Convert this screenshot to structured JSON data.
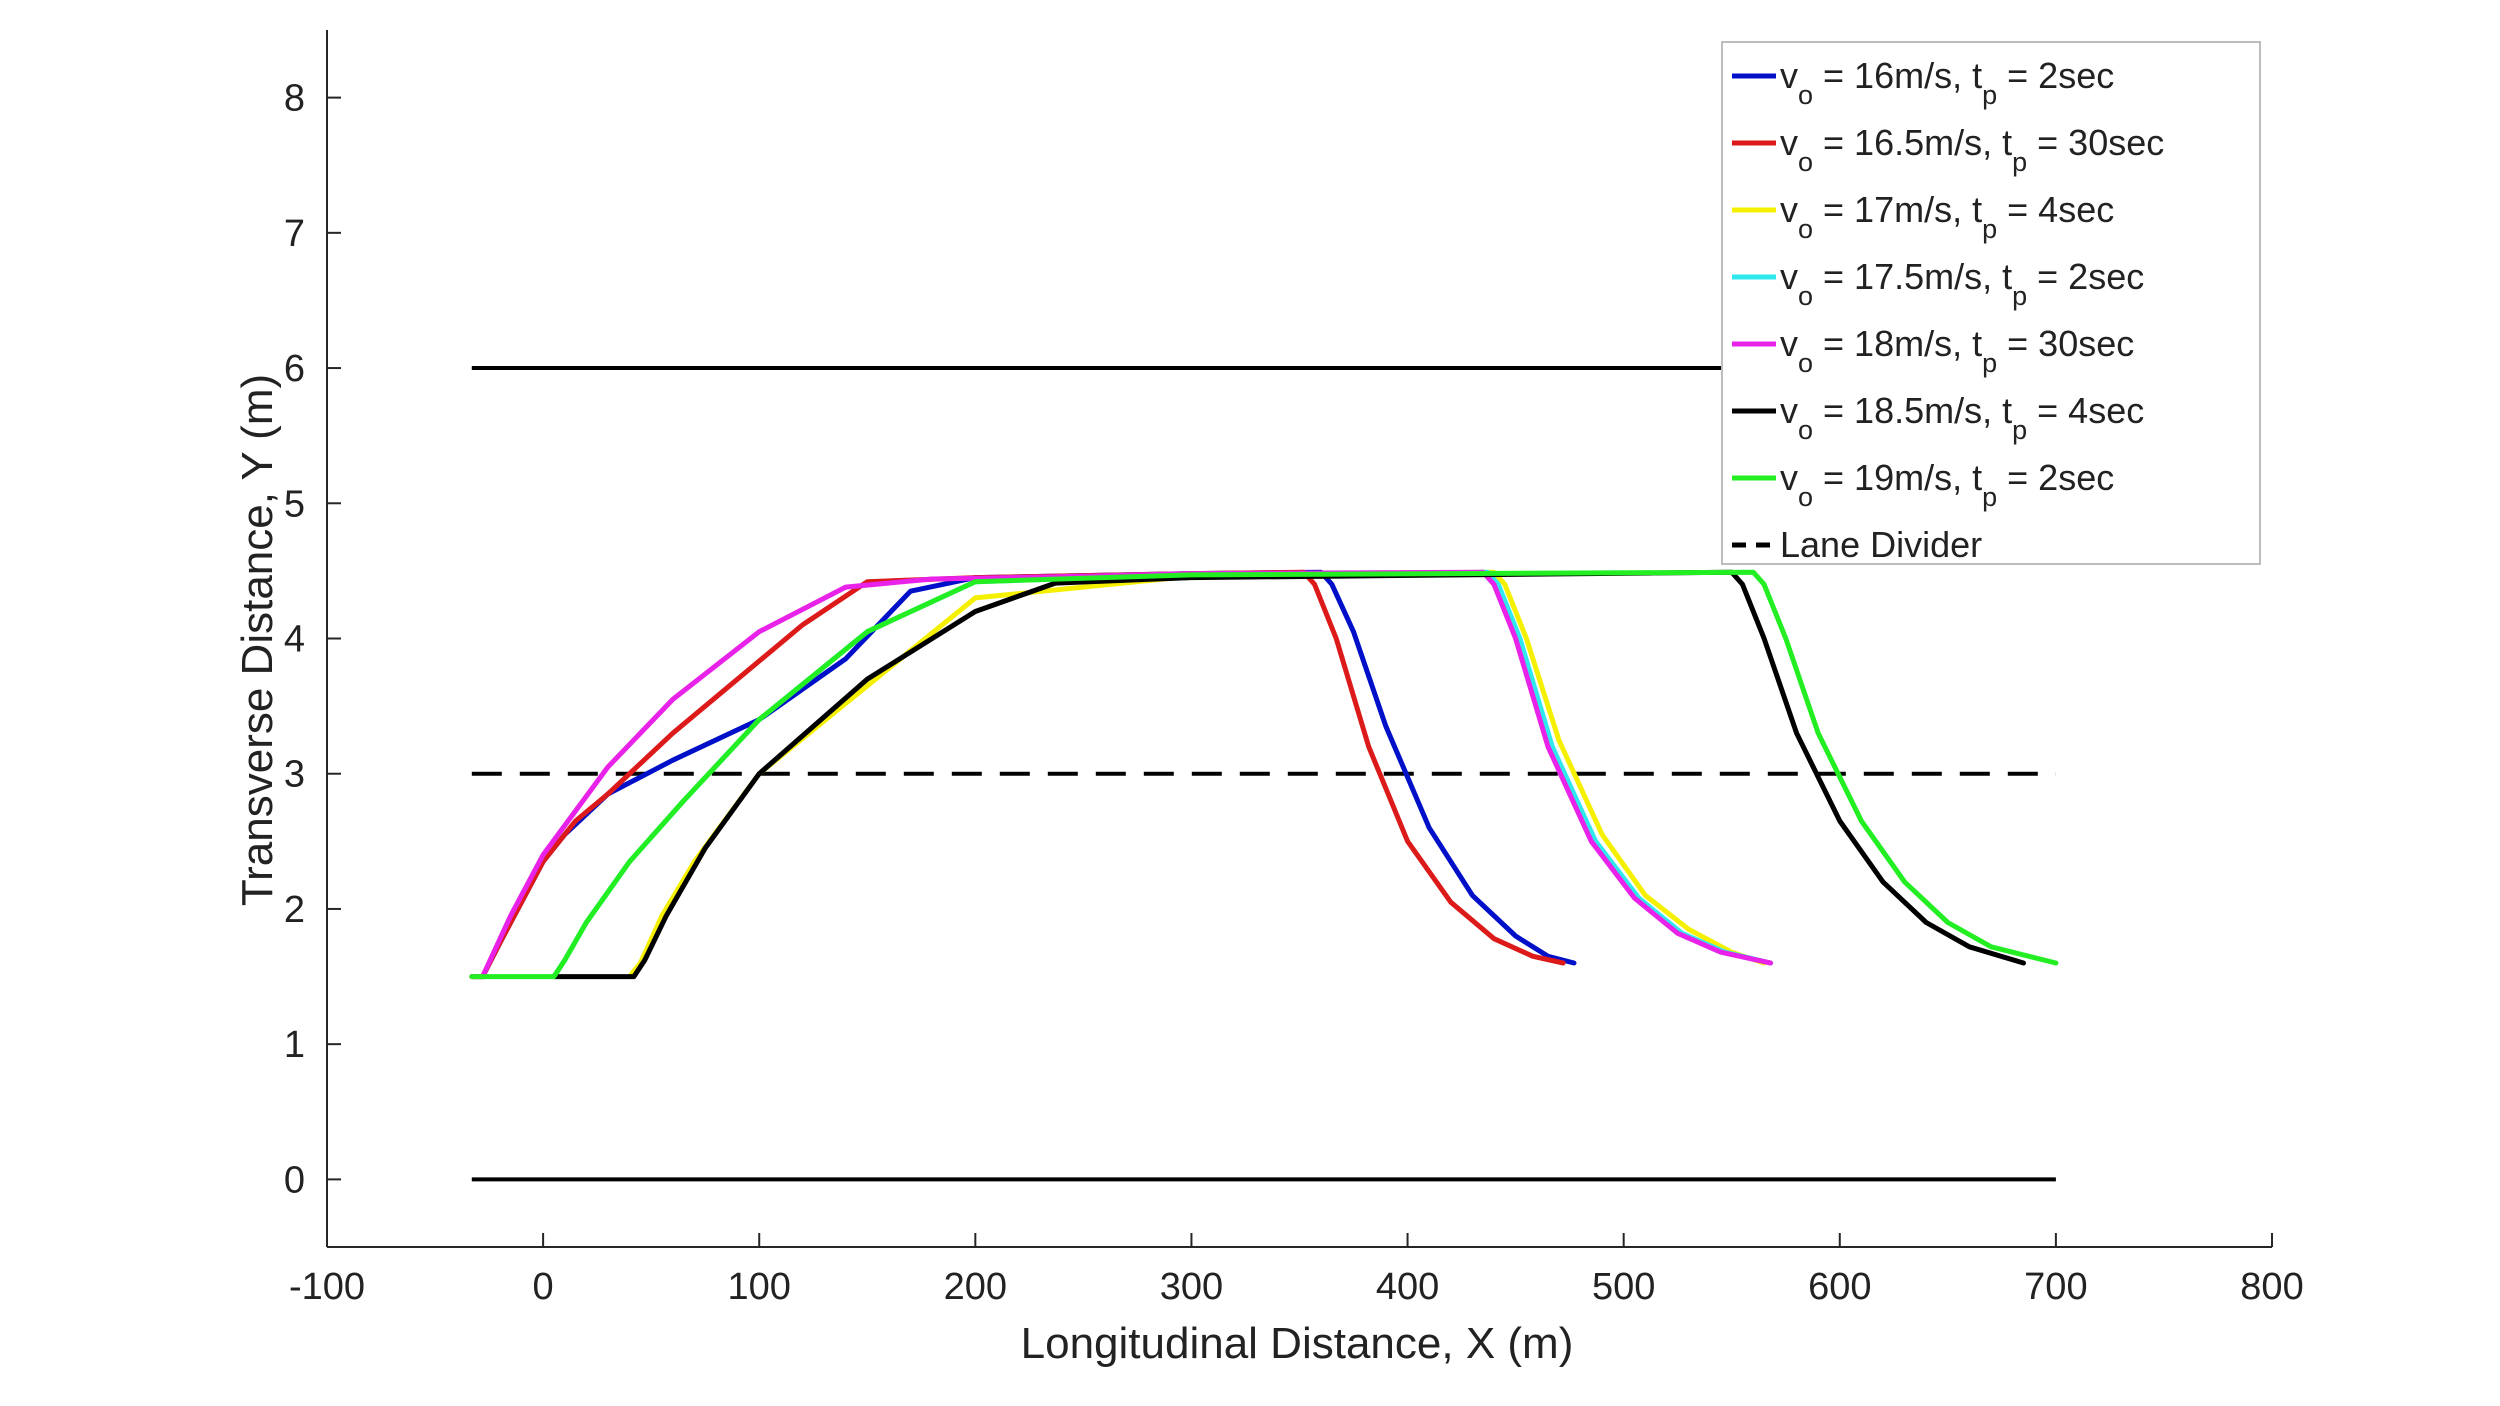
{
  "chart_data": {
    "type": "line",
    "title": "",
    "xlabel": "Longitudinal Distance, X (m)",
    "ylabel": "Transverse Distance, Y (m)",
    "xlim": [
      -100,
      800
    ],
    "ylim": [
      -0.5,
      8.5
    ],
    "xticks": [
      -100,
      0,
      100,
      200,
      300,
      400,
      500,
      600,
      700,
      800
    ],
    "yticks": [
      0,
      1,
      2,
      3,
      4,
      5,
      6,
      7,
      8
    ],
    "grid": false,
    "legend_position": "top-right",
    "series": [
      {
        "name": "v_o = 16m/s, t_p = 2sec",
        "v": "16m/s",
        "t": "2sec",
        "color": "#0010c8",
        "x": [
          -28,
          -20,
          -10,
          0,
          10,
          30,
          60,
          100,
          140,
          170,
          200,
          300,
          360,
          365,
          375,
          390,
          410,
          430,
          450,
          465,
          477
        ],
        "y": [
          1.5,
          1.75,
          2.05,
          2.35,
          2.55,
          2.85,
          3.1,
          3.4,
          3.85,
          4.35,
          4.45,
          4.48,
          4.49,
          4.4,
          4.05,
          3.35,
          2.6,
          2.1,
          1.8,
          1.65,
          1.6
        ]
      },
      {
        "name": "v_o = 16.5m/s, t_p = 30sec",
        "v": "16.5m/s",
        "t": "30sec",
        "color": "#dd1a1a",
        "x": [
          -33,
          -28,
          -20,
          -10,
          0,
          15,
          30,
          60,
          90,
          120,
          150,
          200,
          300,
          352,
          357,
          367,
          382,
          400,
          420,
          440,
          458,
          472
        ],
        "y": [
          1.5,
          1.5,
          1.75,
          2.05,
          2.35,
          2.65,
          2.85,
          3.3,
          3.7,
          4.1,
          4.42,
          4.45,
          4.48,
          4.49,
          4.4,
          4.0,
          3.2,
          2.5,
          2.05,
          1.78,
          1.65,
          1.6
        ]
      },
      {
        "name": "v_o = 17m/s, t_p = 4sec",
        "v": "17m/s",
        "t": "4sec",
        "color": "#f5f000",
        "x": [
          40,
          45,
          55,
          70,
          100,
          150,
          200,
          300,
          440,
          445,
          455,
          470,
          490,
          510,
          530,
          550,
          565
        ],
        "y": [
          1.5,
          1.6,
          1.95,
          2.35,
          3.0,
          3.65,
          4.3,
          4.46,
          4.49,
          4.4,
          4.0,
          3.25,
          2.55,
          2.1,
          1.85,
          1.68,
          1.6
        ]
      },
      {
        "name": "v_o = 17.5m/s, t_p = 2sec",
        "v": "17.5m/s",
        "t": "2sec",
        "color": "#2ee8ee",
        "x": [
          5,
          10,
          20,
          40,
          65,
          100,
          150,
          200,
          300,
          437,
          442,
          452,
          467,
          487,
          507,
          527,
          547,
          568
        ],
        "y": [
          1.5,
          1.62,
          1.9,
          2.35,
          2.8,
          3.4,
          4.05,
          4.42,
          4.47,
          4.49,
          4.4,
          4.0,
          3.2,
          2.5,
          2.08,
          1.82,
          1.68,
          1.6
        ]
      },
      {
        "name": "v_o = 18m/s, t_p = 30sec",
        "v": "18m/s",
        "t": "30sec",
        "color": "#e822e8",
        "x": [
          -33,
          -28,
          -15,
          0,
          30,
          60,
          100,
          140,
          180,
          250,
          300,
          435,
          440,
          450,
          465,
          485,
          505,
          525,
          545,
          568
        ],
        "y": [
          1.5,
          1.5,
          1.95,
          2.4,
          3.05,
          3.55,
          4.05,
          4.38,
          4.44,
          4.46,
          4.48,
          4.49,
          4.4,
          4.0,
          3.2,
          2.5,
          2.08,
          1.82,
          1.68,
          1.6
        ]
      },
      {
        "name": "v_o = 18.5m/s, t_p = 4sec",
        "v": "18.5m/s",
        "t": "4sec",
        "color": "#000000",
        "x": [
          5,
          42,
          47,
          57,
          75,
          100,
          150,
          200,
          237,
          300,
          550,
          555,
          565,
          580,
          600,
          620,
          640,
          660,
          685
        ],
        "y": [
          1.5,
          1.5,
          1.62,
          1.95,
          2.45,
          3.0,
          3.7,
          4.2,
          4.41,
          4.45,
          4.49,
          4.4,
          4.0,
          3.3,
          2.65,
          2.2,
          1.9,
          1.72,
          1.6
        ]
      },
      {
        "name": "v_o = 19m/s, t_p = 2sec",
        "v": "19m/s",
        "t": "2sec",
        "color": "#22ee22",
        "x": [
          -33,
          5,
          10,
          20,
          40,
          65,
          100,
          150,
          200,
          300,
          560,
          565,
          575,
          590,
          610,
          630,
          650,
          670,
          700
        ],
        "y": [
          1.5,
          1.5,
          1.62,
          1.9,
          2.35,
          2.8,
          3.4,
          4.05,
          4.42,
          4.47,
          4.49,
          4.4,
          4.0,
          3.3,
          2.65,
          2.2,
          1.9,
          1.72,
          1.6
        ]
      }
    ],
    "reference_lines": [
      {
        "name": "road-edge-top",
        "y": 6,
        "x_range": [
          -33,
          700
        ],
        "style": "solid"
      },
      {
        "name": "Lane Divider",
        "y": 3,
        "x_range": [
          -33,
          700
        ],
        "style": "dashed"
      },
      {
        "name": "road-edge-bottom",
        "y": 0,
        "x_range": [
          -33,
          700
        ],
        "style": "solid"
      }
    ],
    "legend": {
      "v_symbol": "v",
      "v_sub": "o",
      "t_symbol": "t",
      "t_sub": "p",
      "eq": " = ",
      "sep": ", ",
      "divider_label": "Lane Divider"
    }
  }
}
